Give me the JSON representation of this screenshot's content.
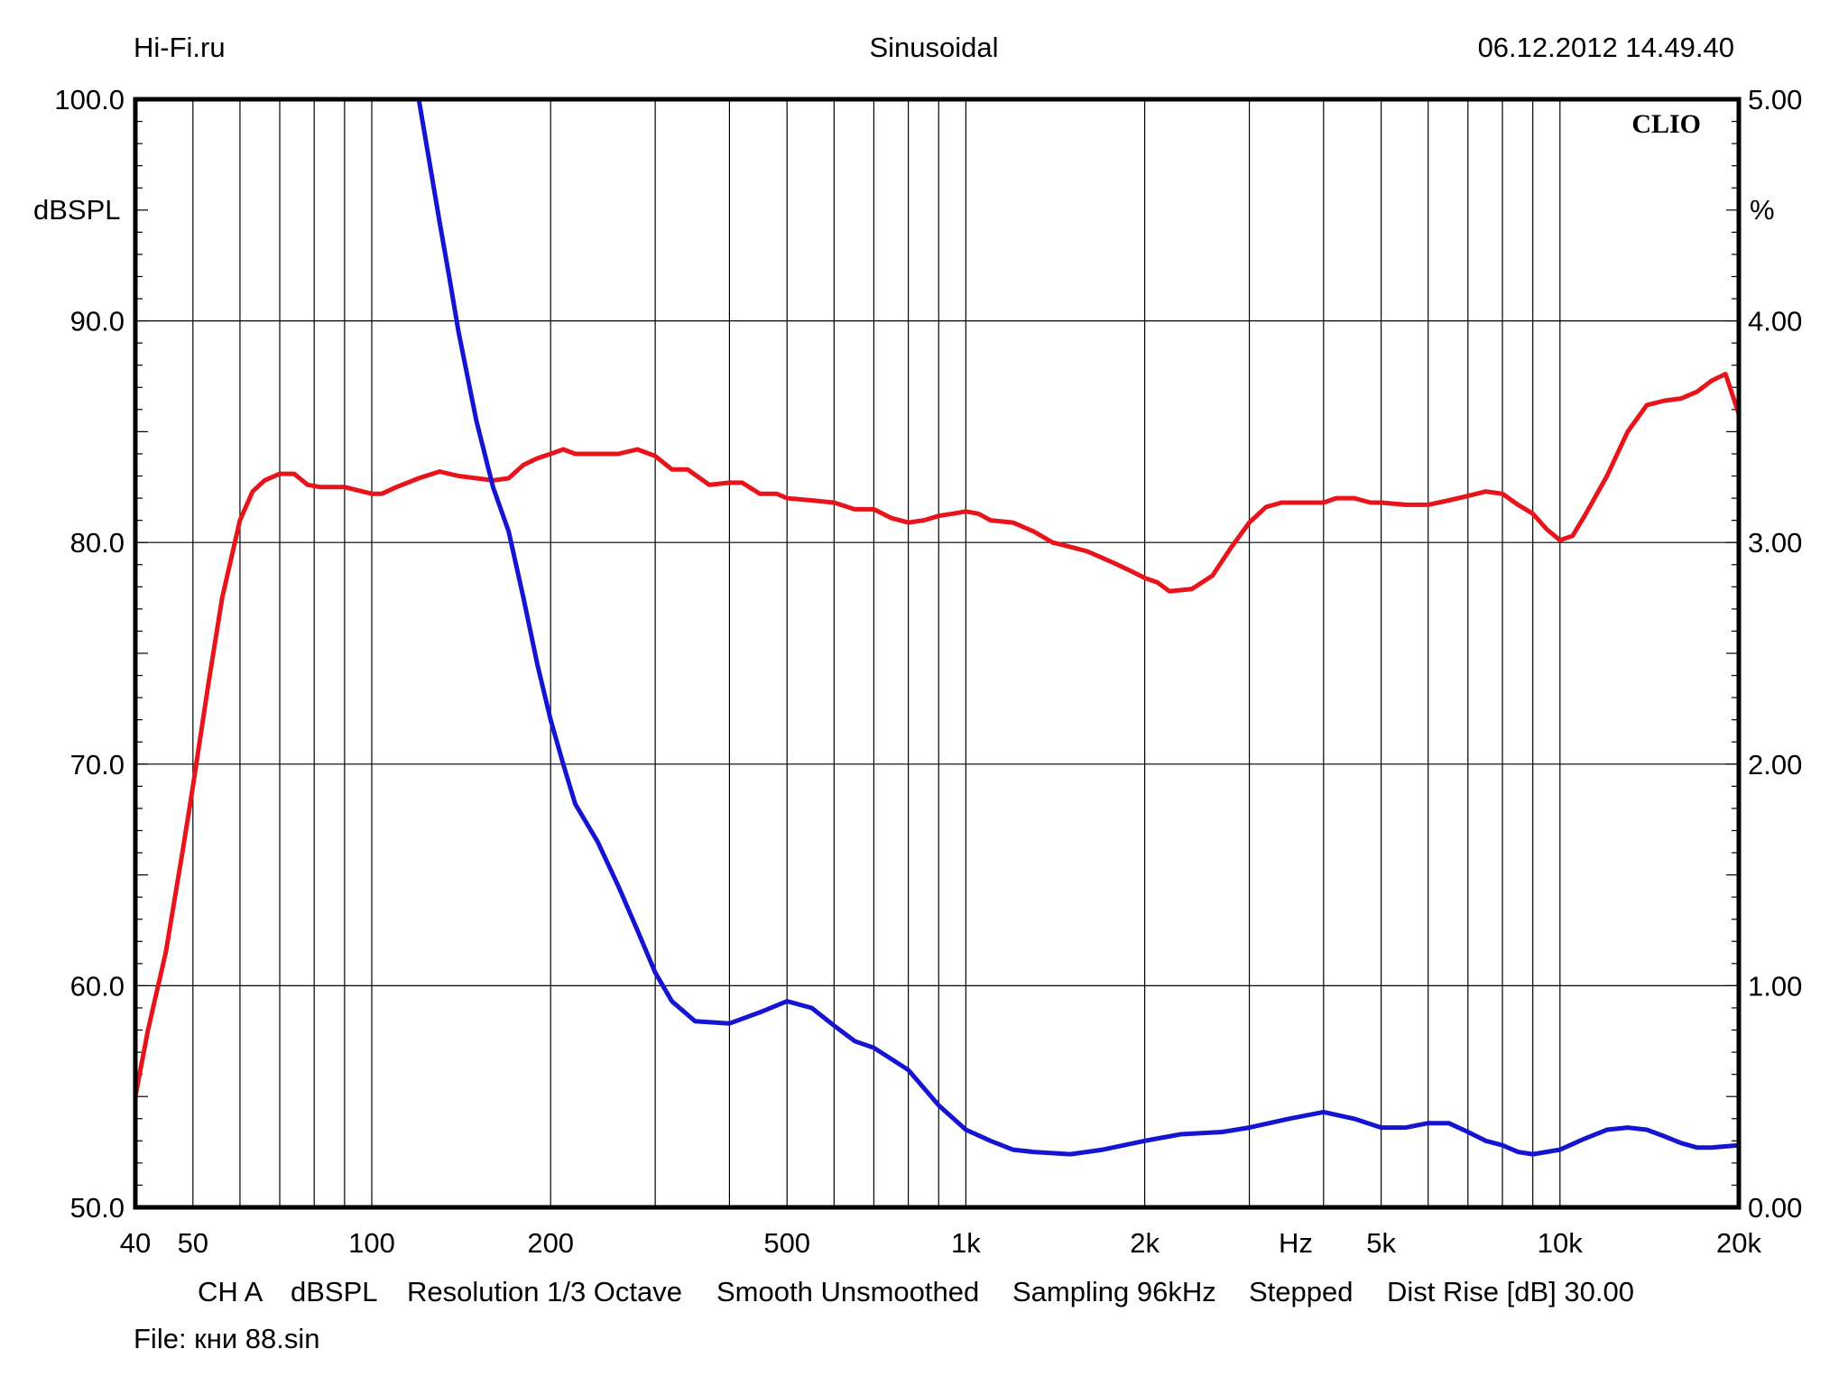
{
  "header": {
    "left": "Hi-Fi.ru",
    "center": "Sinusoidal",
    "right": "06.12.2012 14.49.40"
  },
  "brand": "CLIO",
  "footer": {
    "settings": [
      "CH A",
      "dBSPL",
      "Resolution 1/3 Octave",
      "Smooth Unsmoothed",
      "Sampling 96kHz",
      "Stepped",
      "Dist Rise [dB] 30.00"
    ],
    "file": "File: кни 88.sin"
  },
  "colors": {
    "spl": "#e8141b",
    "thd": "#1414d2",
    "grid": "#000000",
    "background": "#ffffff"
  },
  "chart_data": {
    "type": "line",
    "x_scale": "log",
    "xlim": [
      40,
      20000
    ],
    "ylim_left": [
      50,
      100
    ],
    "ylim_right": [
      0,
      5
    ],
    "ylabel_left": "dBSPL",
    "ylabel_right": "%",
    "xlabel": "Hz",
    "grid": true,
    "x_ticks": [
      {
        "value": 40,
        "label": "40"
      },
      {
        "value": 50,
        "label": "50"
      },
      {
        "value": 100,
        "label": "100"
      },
      {
        "value": 200,
        "label": "200"
      },
      {
        "value": 500,
        "label": "500"
      },
      {
        "value": 1000,
        "label": "1k"
      },
      {
        "value": 2000,
        "label": "2k"
      },
      {
        "value": 5000,
        "label": "5k"
      },
      {
        "value": 10000,
        "label": "10k"
      },
      {
        "value": 20000,
        "label": "20k"
      }
    ],
    "y_ticks_left": [
      {
        "value": 100,
        "label": "100.0"
      },
      {
        "value": 90,
        "label": "90.0"
      },
      {
        "value": 80,
        "label": "80.0"
      },
      {
        "value": 70,
        "label": "70.0"
      },
      {
        "value": 60,
        "label": "60.0"
      },
      {
        "value": 50,
        "label": "50.0"
      }
    ],
    "y_ticks_right": [
      {
        "value": 5,
        "label": "5.00"
      },
      {
        "value": 4,
        "label": "4.00"
      },
      {
        "value": 3,
        "label": "3.00"
      },
      {
        "value": 2,
        "label": "2.00"
      },
      {
        "value": 1,
        "label": "1.00"
      },
      {
        "value": 0,
        "label": "0.00"
      }
    ],
    "series": [
      {
        "axis": "left",
        "color": "#e8141b",
        "points": [
          [
            40,
            55
          ],
          [
            42,
            58
          ],
          [
            45,
            61.5
          ],
          [
            48,
            66
          ],
          [
            50,
            69
          ],
          [
            53,
            73.5
          ],
          [
            56,
            77.5
          ],
          [
            60,
            81
          ],
          [
            63,
            82.3
          ],
          [
            66,
            82.8
          ],
          [
            70,
            83.1
          ],
          [
            74,
            83.1
          ],
          [
            78,
            82.6
          ],
          [
            82,
            82.5
          ],
          [
            90,
            82.5
          ],
          [
            100,
            82.2
          ],
          [
            104,
            82.2
          ],
          [
            110,
            82.5
          ],
          [
            120,
            82.9
          ],
          [
            130,
            83.2
          ],
          [
            140,
            83.0
          ],
          [
            150,
            82.9
          ],
          [
            160,
            82.8
          ],
          [
            170,
            82.9
          ],
          [
            180,
            83.5
          ],
          [
            190,
            83.8
          ],
          [
            200,
            84.0
          ],
          [
            210,
            84.2
          ],
          [
            220,
            84.0
          ],
          [
            240,
            84.0
          ],
          [
            260,
            84.0
          ],
          [
            280,
            84.2
          ],
          [
            300,
            83.9
          ],
          [
            320,
            83.3
          ],
          [
            340,
            83.3
          ],
          [
            370,
            82.6
          ],
          [
            400,
            82.7
          ],
          [
            420,
            82.7
          ],
          [
            450,
            82.2
          ],
          [
            480,
            82.2
          ],
          [
            500,
            82.0
          ],
          [
            550,
            81.9
          ],
          [
            600,
            81.8
          ],
          [
            650,
            81.5
          ],
          [
            700,
            81.5
          ],
          [
            750,
            81.1
          ],
          [
            800,
            80.9
          ],
          [
            850,
            81.0
          ],
          [
            900,
            81.2
          ],
          [
            950,
            81.3
          ],
          [
            1000,
            81.4
          ],
          [
            1050,
            81.3
          ],
          [
            1100,
            81.0
          ],
          [
            1200,
            80.9
          ],
          [
            1300,
            80.5
          ],
          [
            1400,
            80.0
          ],
          [
            1500,
            79.8
          ],
          [
            1600,
            79.6
          ],
          [
            1700,
            79.3
          ],
          [
            1800,
            79.0
          ],
          [
            1900,
            78.7
          ],
          [
            2000,
            78.4
          ],
          [
            2100,
            78.2
          ],
          [
            2200,
            77.8
          ],
          [
            2400,
            77.9
          ],
          [
            2600,
            78.5
          ],
          [
            2800,
            79.8
          ],
          [
            3000,
            80.9
          ],
          [
            3200,
            81.6
          ],
          [
            3400,
            81.8
          ],
          [
            3600,
            81.8
          ],
          [
            4000,
            81.8
          ],
          [
            4200,
            82.0
          ],
          [
            4500,
            82.0
          ],
          [
            4800,
            81.8
          ],
          [
            5000,
            81.8
          ],
          [
            5500,
            81.7
          ],
          [
            6000,
            81.7
          ],
          [
            6500,
            81.9
          ],
          [
            7000,
            82.1
          ],
          [
            7500,
            82.3
          ],
          [
            8000,
            82.2
          ],
          [
            8500,
            81.7
          ],
          [
            9000,
            81.3
          ],
          [
            9500,
            80.6
          ],
          [
            10000,
            80.1
          ],
          [
            10500,
            80.3
          ],
          [
            11000,
            81.2
          ],
          [
            12000,
            83.0
          ],
          [
            13000,
            85.0
          ],
          [
            14000,
            86.2
          ],
          [
            15000,
            86.4
          ],
          [
            16000,
            86.5
          ],
          [
            17000,
            86.8
          ],
          [
            18000,
            87.3
          ],
          [
            19000,
            87.6
          ],
          [
            20000,
            85.8
          ]
        ]
      },
      {
        "axis": "right",
        "color": "#1414d2",
        "points": [
          [
            120,
            5.0
          ],
          [
            125,
            4.72
          ],
          [
            130,
            4.45
          ],
          [
            135,
            4.2
          ],
          [
            140,
            3.95
          ],
          [
            150,
            3.55
          ],
          [
            160,
            3.25
          ],
          [
            170,
            3.05
          ],
          [
            180,
            2.75
          ],
          [
            190,
            2.45
          ],
          [
            200,
            2.2
          ],
          [
            210,
            2.0
          ],
          [
            220,
            1.82
          ],
          [
            240,
            1.65
          ],
          [
            260,
            1.45
          ],
          [
            280,
            1.25
          ],
          [
            300,
            1.06
          ],
          [
            320,
            0.93
          ],
          [
            350,
            0.84
          ],
          [
            400,
            0.83
          ],
          [
            450,
            0.88
          ],
          [
            500,
            0.93
          ],
          [
            550,
            0.9
          ],
          [
            600,
            0.82
          ],
          [
            650,
            0.75
          ],
          [
            700,
            0.72
          ],
          [
            800,
            0.62
          ],
          [
            900,
            0.46
          ],
          [
            1000,
            0.35
          ],
          [
            1100,
            0.3
          ],
          [
            1200,
            0.26
          ],
          [
            1300,
            0.25
          ],
          [
            1500,
            0.24
          ],
          [
            1700,
            0.26
          ],
          [
            2000,
            0.3
          ],
          [
            2300,
            0.33
          ],
          [
            2700,
            0.34
          ],
          [
            3000,
            0.36
          ],
          [
            3500,
            0.4
          ],
          [
            4000,
            0.43
          ],
          [
            4500,
            0.4
          ],
          [
            5000,
            0.36
          ],
          [
            5500,
            0.36
          ],
          [
            6000,
            0.38
          ],
          [
            6500,
            0.38
          ],
          [
            7000,
            0.34
          ],
          [
            7500,
            0.3
          ],
          [
            8000,
            0.28
          ],
          [
            8500,
            0.25
          ],
          [
            9000,
            0.24
          ],
          [
            10000,
            0.26
          ],
          [
            11000,
            0.31
          ],
          [
            12000,
            0.35
          ],
          [
            13000,
            0.36
          ],
          [
            14000,
            0.35
          ],
          [
            15000,
            0.32
          ],
          [
            16000,
            0.29
          ],
          [
            17000,
            0.27
          ],
          [
            18000,
            0.27
          ],
          [
            20000,
            0.28
          ]
        ]
      }
    ]
  }
}
